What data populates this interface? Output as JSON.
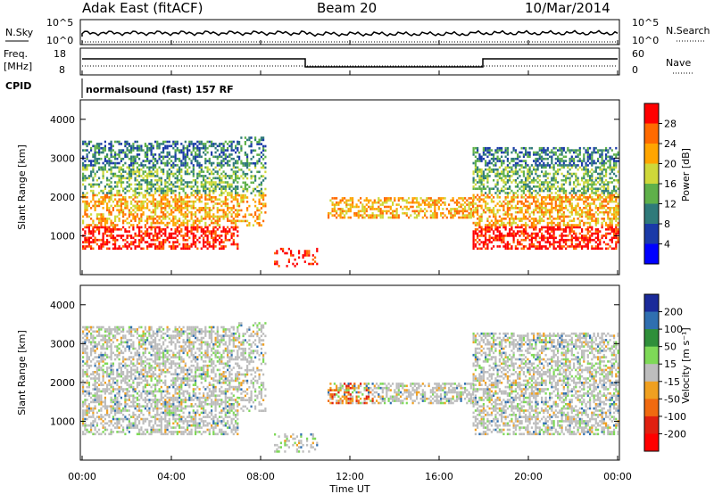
{
  "header": {
    "left": "Adak East (fitACF)",
    "center": "Beam 20",
    "right": "10/Mar/2014"
  },
  "panels": {
    "nsky": {
      "label": "N.Sky",
      "right_label": "N.Search",
      "ticks_left": [
        "10^5",
        "10^0"
      ],
      "ticks_right": [
        "10^5",
        "10^0"
      ]
    },
    "freq": {
      "label_line1": "Freq.",
      "label_line2": "[MHz]",
      "right_label": "Nave",
      "ticks_left": [
        "18",
        "8"
      ],
      "ticks_right": [
        "60",
        "0"
      ]
    },
    "cpid": {
      "label": "CPID",
      "text": "normalsound (fast) 157 RF"
    }
  },
  "x_axis": {
    "label": "Time UT",
    "ticks": [
      "00:00",
      "04:00",
      "08:00",
      "12:00",
      "16:00",
      "20:00",
      "00:00"
    ]
  },
  "chart_data": [
    {
      "type": "heatmap",
      "name": "power",
      "ylabel": "Slant Range [km]",
      "yticks": [
        1000,
        2000,
        3000,
        4000
      ],
      "ylim": [
        0,
        4500
      ],
      "xlim_hours": [
        0,
        24
      ],
      "colorbar": {
        "label": "Power [dB]",
        "ticks": [
          "28",
          "24",
          "20",
          "16",
          "12",
          "8",
          "4"
        ],
        "colors": [
          "#ff0000",
          "#ff6a00",
          "#ffa500",
          "#cfd83a",
          "#5fb04a",
          "#2f7a7a",
          "#1a3aa8",
          "#0000ff"
        ]
      }
    },
    {
      "type": "heatmap",
      "name": "velocity",
      "ylabel": "Slant Range [km]",
      "yticks": [
        1000,
        2000,
        3000,
        4000
      ],
      "ylim": [
        0,
        4500
      ],
      "xlim_hours": [
        0,
        24
      ],
      "colorbar": {
        "label": "Velocity [m s⁻¹]",
        "ticks": [
          "200",
          "100",
          "50",
          "15",
          "-15",
          "-50",
          "-100",
          "-200"
        ],
        "colors": [
          "#1a2a9a",
          "#2f6fb0",
          "#2f8f3a",
          "#7ed957",
          "#bdbdbd",
          "#f0a020",
          "#f06a10",
          "#e02010",
          "#ff0000"
        ]
      }
    }
  ]
}
